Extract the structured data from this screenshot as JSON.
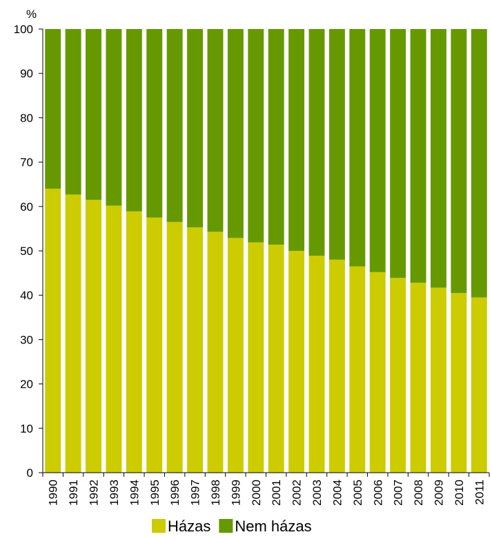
{
  "chart_data": {
    "type": "bar",
    "stacked": true,
    "ylabel": "%",
    "ylim": [
      0,
      100
    ],
    "yticks": [
      0,
      10,
      20,
      30,
      40,
      50,
      60,
      70,
      80,
      90,
      100
    ],
    "categories": [
      "1990",
      "1991",
      "1992",
      "1993",
      "1994",
      "1995",
      "1996",
      "1997",
      "1998",
      "1999",
      "2000",
      "2001",
      "2002",
      "2003",
      "2004",
      "2005",
      "2006",
      "2007",
      "2008",
      "2009",
      "2010",
      "2011"
    ],
    "series": [
      {
        "name": "Házas",
        "color": "#cccc00",
        "values": [
          64.0,
          62.7,
          61.5,
          60.2,
          58.9,
          57.5,
          56.5,
          55.3,
          54.3,
          52.9,
          51.9,
          51.4,
          50.0,
          48.9,
          48.0,
          46.5,
          45.2,
          43.9,
          42.8,
          41.7,
          40.5,
          39.5
        ]
      },
      {
        "name": "Nem házas",
        "color": "#669900",
        "values": [
          36.0,
          37.3,
          38.5,
          39.8,
          41.1,
          42.5,
          43.5,
          44.7,
          45.7,
          47.1,
          48.1,
          48.6,
          50.0,
          51.1,
          52.0,
          53.5,
          54.8,
          56.1,
          57.2,
          58.3,
          59.5,
          60.5
        ]
      }
    ],
    "legend_position": "bottom",
    "grid": false
  }
}
